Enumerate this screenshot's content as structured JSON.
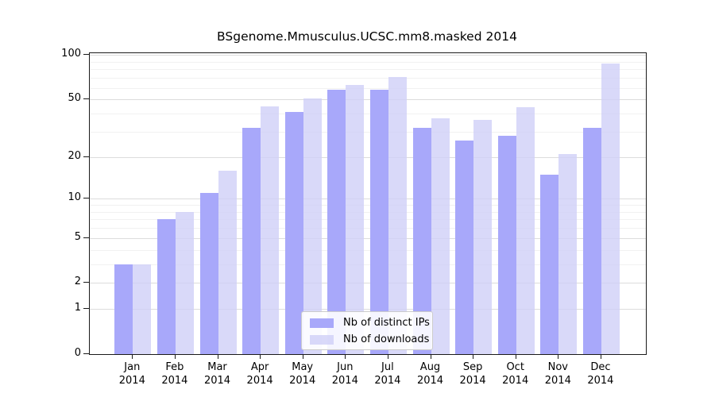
{
  "chart_data": {
    "type": "bar",
    "title": "BSgenome.Mmusculus.UCSC.mm8.masked 2014",
    "categories": [
      "Jan 2014",
      "Feb 2014",
      "Mar 2014",
      "Apr 2014",
      "May 2014",
      "Jun 2014",
      "Jul 2014",
      "Aug 2014",
      "Sep 2014",
      "Oct 2014",
      "Nov 2014",
      "Dec 2014"
    ],
    "series": [
      {
        "name": "Nb of distinct IPs",
        "color": "#a8a8fa",
        "values": [
          3,
          7,
          11,
          32,
          41,
          58,
          58,
          32,
          26,
          28,
          15,
          32
        ]
      },
      {
        "name": "Nb of downloads",
        "color": "rgba(207,207,248,0.8)",
        "values": [
          3,
          8,
          16,
          45,
          51,
          63,
          71,
          37,
          36,
          44,
          21,
          88
        ]
      }
    ],
    "yscale": "log1p",
    "yticks": [
      0,
      1,
      2,
      5,
      10,
      20,
      50,
      100
    ],
    "minor_gridlines": [
      3,
      4,
      6,
      7,
      8,
      9,
      30,
      40,
      60,
      70,
      80,
      90
    ],
    "ylim": [
      0,
      100
    ],
    "grid": true,
    "xlabel": "",
    "ylabel": "",
    "legend_position": "inside-bottom-center"
  },
  "colors": {
    "axis": "#1a1a1a",
    "major_grid": "#dcdcdc",
    "minor_grid": "#f1f1f1",
    "legend_border": "#cccccc",
    "legend_background": "rgba(255,255,255,0.88)",
    "background": "#ffffff"
  }
}
